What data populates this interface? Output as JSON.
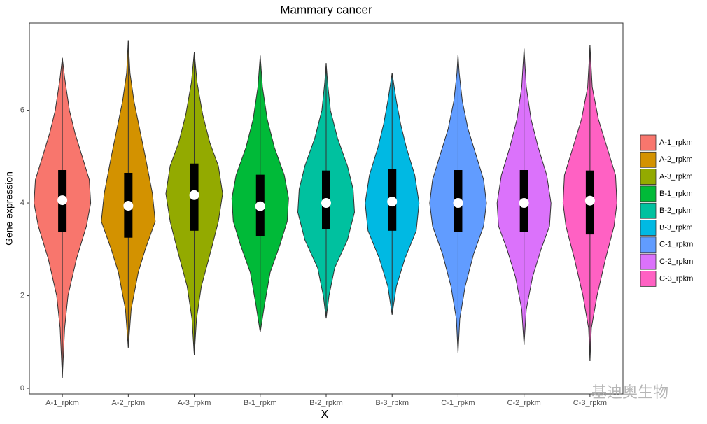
{
  "chart_data": {
    "type": "violin",
    "title": "Mammary cancer",
    "x_label": "X",
    "y_label": "Gene expression",
    "categories": [
      "A-1_rpkm",
      "A-2_rpkm",
      "A-3_rpkm",
      "B-1_rpkm",
      "B-2_rpkm",
      "B-3_rpkm",
      "C-1_rpkm",
      "C-2_rpkm",
      "C-3_rpkm"
    ],
    "ylim": [
      -0.12,
      7.88
    ],
    "yticks": [
      0,
      2,
      4,
      6
    ],
    "grid": false,
    "legend": "right",
    "series": [
      {
        "name": "A-1_rpkm",
        "color": "#F8766D",
        "min": 0.23,
        "q1": 3.37,
        "median": 4.06,
        "q3": 4.71,
        "max": 7.13,
        "density_y": [
          0.23,
          1.3,
          2,
          2.8,
          3.5,
          4,
          4.5,
          5,
          5.5,
          6,
          6.7,
          7.13
        ],
        "density_width": [
          0,
          0.08,
          0.2,
          0.5,
          0.85,
          1,
          0.95,
          0.7,
          0.45,
          0.25,
          0.08,
          0
        ]
      },
      {
        "name": "A-2_rpkm",
        "color": "#D39200",
        "min": 0.88,
        "q1": 3.25,
        "median": 3.94,
        "q3": 4.65,
        "max": 7.51,
        "density_y": [
          0.88,
          1.7,
          2.5,
          3,
          3.6,
          4.2,
          5,
          5.6,
          6.2,
          6.8,
          7.51
        ],
        "density_width": [
          0,
          0.1,
          0.35,
          0.6,
          0.95,
          0.85,
          0.6,
          0.4,
          0.2,
          0.06,
          0
        ]
      },
      {
        "name": "A-3_rpkm",
        "color": "#93AA00",
        "min": 0.71,
        "q1": 3.4,
        "median": 4.17,
        "q3": 4.85,
        "max": 7.25,
        "density_y": [
          0.71,
          1.5,
          2.2,
          3,
          3.6,
          4.2,
          4.8,
          5.3,
          5.9,
          6.6,
          7.25
        ],
        "density_width": [
          0,
          0.08,
          0.25,
          0.6,
          0.85,
          1,
          0.85,
          0.55,
          0.3,
          0.1,
          0
        ]
      },
      {
        "name": "B-1_rpkm",
        "color": "#00BA38",
        "min": 1.21,
        "q1": 3.29,
        "median": 3.93,
        "q3": 4.61,
        "max": 7.18,
        "density_y": [
          1.21,
          1.8,
          2.5,
          3.1,
          3.6,
          4.1,
          4.6,
          5.2,
          5.8,
          6.5,
          7.18
        ],
        "density_width": [
          0,
          0.15,
          0.35,
          0.7,
          0.95,
          1,
          0.85,
          0.5,
          0.25,
          0.08,
          0
        ]
      },
      {
        "name": "B-2_rpkm",
        "color": "#00C19F",
        "min": 1.51,
        "q1": 3.43,
        "median": 4.0,
        "q3": 4.7,
        "max": 7.02,
        "density_y": [
          1.51,
          2,
          2.6,
          3.2,
          3.8,
          4.3,
          4.8,
          5.4,
          6,
          6.6,
          7.02
        ],
        "density_width": [
          0,
          0.1,
          0.3,
          0.75,
          1,
          0.95,
          0.75,
          0.4,
          0.15,
          0.05,
          0
        ]
      },
      {
        "name": "B-3_rpkm",
        "color": "#00B9E3",
        "min": 1.59,
        "q1": 3.4,
        "median": 4.03,
        "q3": 4.74,
        "max": 6.8,
        "density_y": [
          1.59,
          2.2,
          2.8,
          3.4,
          4,
          4.6,
          5.2,
          5.7,
          6.2,
          6.8
        ],
        "density_width": [
          0,
          0.15,
          0.45,
          0.85,
          0.95,
          0.8,
          0.5,
          0.3,
          0.15,
          0
        ]
      },
      {
        "name": "C-1_rpkm",
        "color": "#619CFF",
        "min": 0.76,
        "q1": 3.38,
        "median": 4.0,
        "q3": 4.71,
        "max": 7.2,
        "density_y": [
          0.76,
          1.5,
          2.2,
          2.9,
          3.5,
          4,
          4.5,
          5.1,
          5.6,
          6.2,
          6.8,
          7.2
        ],
        "density_width": [
          0,
          0.06,
          0.25,
          0.55,
          0.9,
          1,
          0.9,
          0.6,
          0.35,
          0.15,
          0.04,
          0
        ]
      },
      {
        "name": "C-2_rpkm",
        "color": "#DB72FB",
        "min": 0.94,
        "q1": 3.38,
        "median": 4.0,
        "q3": 4.71,
        "max": 7.33,
        "density_y": [
          0.94,
          1.7,
          2.4,
          3,
          3.5,
          4,
          4.6,
          5.2,
          5.8,
          6.5,
          7.33
        ],
        "density_width": [
          0,
          0.08,
          0.3,
          0.6,
          0.9,
          0.95,
          0.8,
          0.5,
          0.25,
          0.08,
          0
        ]
      },
      {
        "name": "C-3_rpkm",
        "color": "#FF61C3",
        "min": 0.59,
        "q1": 3.32,
        "median": 4.05,
        "q3": 4.7,
        "max": 7.4,
        "density_y": [
          0.59,
          1.3,
          2,
          2.8,
          3.5,
          4,
          4.6,
          5.2,
          5.8,
          6.5,
          7.4
        ],
        "density_width": [
          0,
          0.05,
          0.25,
          0.55,
          0.85,
          0.95,
          0.9,
          0.6,
          0.3,
          0.08,
          0
        ]
      }
    ]
  },
  "watermark": "基迪奥生物"
}
